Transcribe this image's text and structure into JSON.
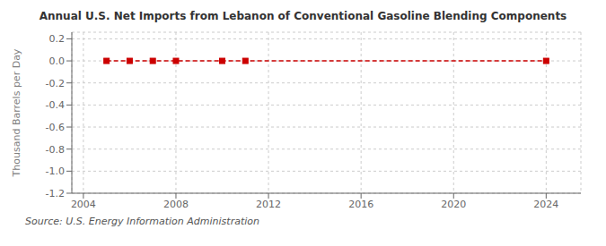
{
  "chart_data": {
    "type": "line",
    "title": "Annual U.S. Net Imports from Lebanon of Conventional Gasoline Blending Components",
    "ylabel": "Thousand Barrels per Day",
    "annotations": [
      "Source: U.S. Energy Information Administration"
    ],
    "x": [
      2005,
      2006,
      2007,
      2008,
      2010,
      2011,
      2024
    ],
    "values": [
      0.0,
      0.0,
      0.0,
      0.0,
      0.0,
      0.0,
      0.0
    ],
    "color": "#cc0000",
    "marker": "square",
    "line_style": "dashed",
    "xlim": [
      2003.5,
      2025.5
    ],
    "ylim": [
      -1.2,
      0.26
    ],
    "xticks": [
      2004,
      2008,
      2012,
      2016,
      2020,
      2024
    ],
    "yticks": [
      0.2,
      {
        "value": 0,
        "label": "0.0"
      },
      -0.2,
      -0.4,
      -0.6,
      -0.8,
      {
        "value": -1,
        "label": "-1.0"
      },
      -1.2
    ],
    "grid": true
  }
}
